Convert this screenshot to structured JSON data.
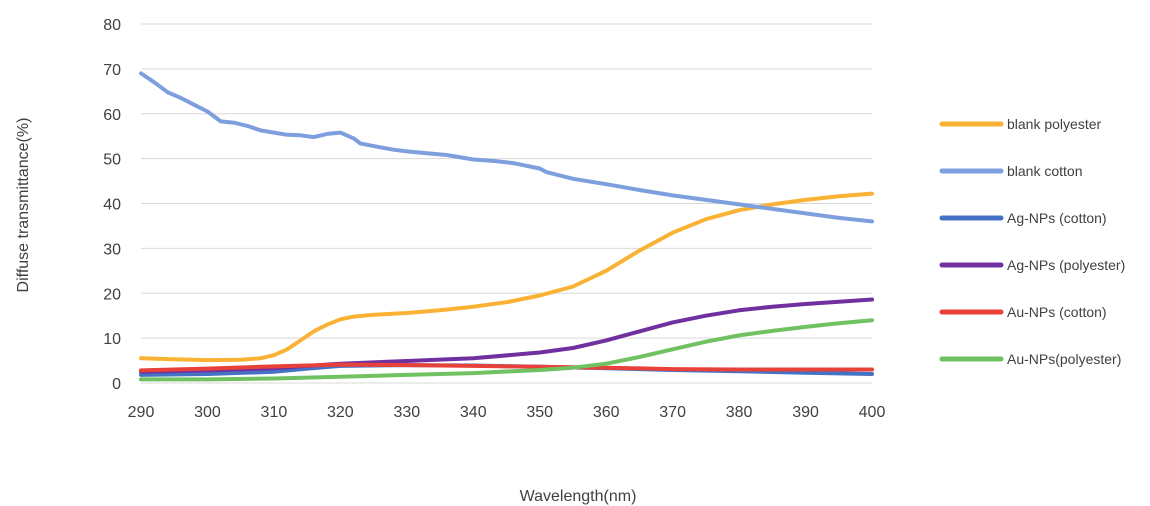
{
  "chart_data": {
    "type": "line",
    "title": "",
    "xlabel": "Wavelength(nm)",
    "ylabel": "Diffuse transmittance(%)",
    "xlim": [
      290,
      400
    ],
    "ylim": [
      0,
      80
    ],
    "x_ticks": [
      290,
      300,
      310,
      320,
      330,
      340,
      350,
      360,
      370,
      380,
      390,
      400
    ],
    "y_ticks": [
      0,
      10,
      20,
      30,
      40,
      50,
      60,
      70,
      80
    ],
    "grid": "horizontal",
    "legend_position": "right",
    "series": [
      {
        "name": "blank polyester",
        "color": "#F9B233",
        "points": [
          [
            290,
            5.5
          ],
          [
            295,
            5.3
          ],
          [
            300,
            5.1
          ],
          [
            305,
            5.2
          ],
          [
            308,
            5.5
          ],
          [
            310,
            6.2
          ],
          [
            312,
            7.5
          ],
          [
            314,
            9.5
          ],
          [
            316,
            11.5
          ],
          [
            318,
            13
          ],
          [
            320,
            14.2
          ],
          [
            322,
            14.8
          ],
          [
            325,
            15.2
          ],
          [
            330,
            15.6
          ],
          [
            335,
            16.2
          ],
          [
            340,
            17
          ],
          [
            345,
            18
          ],
          [
            350,
            19.5
          ],
          [
            355,
            21.5
          ],
          [
            360,
            25
          ],
          [
            365,
            29.5
          ],
          [
            370,
            33.5
          ],
          [
            375,
            36.5
          ],
          [
            380,
            38.5
          ],
          [
            385,
            39.8
          ],
          [
            390,
            40.8
          ],
          [
            395,
            41.6
          ],
          [
            400,
            42.2
          ]
        ]
      },
      {
        "name": "blank cotton",
        "color": "#7E9FDE",
        "points": [
          [
            290,
            69
          ],
          [
            292,
            67
          ],
          [
            294,
            64.8
          ],
          [
            296,
            63.5
          ],
          [
            298,
            62
          ],
          [
            300,
            60.5
          ],
          [
            302,
            58.3
          ],
          [
            304,
            58
          ],
          [
            306,
            57.3
          ],
          [
            308,
            56.3
          ],
          [
            310,
            55.8
          ],
          [
            312,
            55.3
          ],
          [
            314,
            55.2
          ],
          [
            316,
            54.8
          ],
          [
            318,
            55.5
          ],
          [
            320,
            55.8
          ],
          [
            322,
            54.5
          ],
          [
            323,
            53.4
          ],
          [
            325,
            52.8
          ],
          [
            328,
            52
          ],
          [
            330,
            51.6
          ],
          [
            333,
            51.2
          ],
          [
            336,
            50.8
          ],
          [
            340,
            49.8
          ],
          [
            343,
            49.5
          ],
          [
            346,
            49
          ],
          [
            350,
            47.8
          ],
          [
            351,
            47
          ],
          [
            355,
            45.5
          ],
          [
            360,
            44.3
          ],
          [
            365,
            43
          ],
          [
            370,
            41.8
          ],
          [
            375,
            40.8
          ],
          [
            380,
            39.8
          ],
          [
            385,
            38.8
          ],
          [
            390,
            37.8
          ],
          [
            395,
            36.8
          ],
          [
            400,
            36
          ]
        ]
      },
      {
        "name": "Ag-NPs (cotton)",
        "color": "#4472C4",
        "points": [
          [
            290,
            1.8
          ],
          [
            300,
            2
          ],
          [
            310,
            2.5
          ],
          [
            315,
            3.2
          ],
          [
            320,
            3.8
          ],
          [
            330,
            4
          ],
          [
            340,
            3.9
          ],
          [
            350,
            3.6
          ],
          [
            360,
            3.3
          ],
          [
            370,
            2.9
          ],
          [
            380,
            2.6
          ],
          [
            390,
            2.3
          ],
          [
            400,
            2
          ]
        ]
      },
      {
        "name": "Ag-NPs (polyester)",
        "color": "#7030A0",
        "points": [
          [
            290,
            2.5
          ],
          [
            300,
            2.8
          ],
          [
            310,
            3.3
          ],
          [
            315,
            3.8
          ],
          [
            320,
            4.3
          ],
          [
            330,
            4.9
          ],
          [
            340,
            5.5
          ],
          [
            350,
            6.8
          ],
          [
            355,
            7.8
          ],
          [
            360,
            9.5
          ],
          [
            365,
            11.5
          ],
          [
            370,
            13.5
          ],
          [
            375,
            15
          ],
          [
            380,
            16.2
          ],
          [
            385,
            17
          ],
          [
            390,
            17.6
          ],
          [
            395,
            18.1
          ],
          [
            400,
            18.6
          ]
        ]
      },
      {
        "name": "Au-NPs (cotton)",
        "color": "#E8413A",
        "points": [
          [
            290,
            2.8
          ],
          [
            300,
            3.2
          ],
          [
            310,
            3.7
          ],
          [
            320,
            4.1
          ],
          [
            330,
            4
          ],
          [
            340,
            3.8
          ],
          [
            350,
            3.6
          ],
          [
            360,
            3.4
          ],
          [
            370,
            3.1
          ],
          [
            380,
            3
          ],
          [
            390,
            3
          ],
          [
            400,
            3
          ]
        ]
      },
      {
        "name": "Au-NPs(polyester)",
        "color": "#70C161",
        "points": [
          [
            290,
            0.8
          ],
          [
            300,
            0.8
          ],
          [
            310,
            1
          ],
          [
            320,
            1.4
          ],
          [
            330,
            1.8
          ],
          [
            340,
            2.2
          ],
          [
            350,
            2.9
          ],
          [
            355,
            3.4
          ],
          [
            360,
            4.3
          ],
          [
            365,
            5.8
          ],
          [
            370,
            7.5
          ],
          [
            375,
            9.2
          ],
          [
            380,
            10.6
          ],
          [
            385,
            11.6
          ],
          [
            390,
            12.5
          ],
          [
            395,
            13.3
          ],
          [
            400,
            14
          ]
        ]
      }
    ]
  }
}
